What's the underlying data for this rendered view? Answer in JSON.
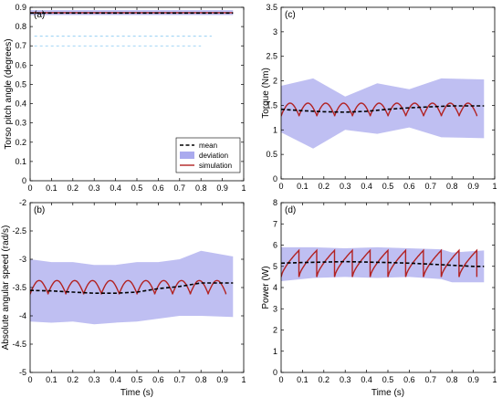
{
  "chart_data": [
    {
      "type": "line",
      "panel_label": "(a)",
      "title": "",
      "xlabel": "",
      "ylabel": "Torso pitch angle (degrees)",
      "xlim": [
        0,
        1
      ],
      "ylim": [
        0,
        0.9
      ],
      "xticks": [
        "0",
        "0.1",
        "0.2",
        "0.3",
        "0.4",
        "0.5",
        "0.6",
        "0.7",
        "0.8",
        "0.9",
        "1"
      ],
      "yticks": [
        "0",
        "0.1",
        "0.2",
        "0.3",
        "0.4",
        "0.5",
        "0.6",
        "0.7",
        "0.8",
        "0.9"
      ],
      "grid": false,
      "legend": {
        "placement": "lower-right",
        "entries": [
          {
            "label": "mean",
            "style": "dashed",
            "color": "#000000"
          },
          {
            "label": "deviation",
            "style": "band",
            "color": "#aaaaee"
          },
          {
            "label": "simulation",
            "style": "solid",
            "color": "#b22222"
          }
        ]
      },
      "mean": {
        "x": [
          0,
          0.95
        ],
        "y": [
          0.87,
          0.87
        ]
      },
      "deviation": {
        "x": [
          0,
          0.95
        ],
        "lower": [
          0.86,
          0.86
        ],
        "upper": [
          0.885,
          0.885
        ]
      },
      "simulation": {
        "x": [
          0,
          0.95
        ],
        "y": [
          0.872,
          0.872
        ]
      },
      "ghost_dashes": [
        0.75,
        0.7
      ]
    },
    {
      "type": "line",
      "panel_label": "(b)",
      "title": "",
      "xlabel": "Time (s)",
      "ylabel": "Absolute angular speed (rad/s)",
      "xlim": [
        0,
        1
      ],
      "ylim": [
        -5,
        -2
      ],
      "xticks": [
        "0",
        "0.1",
        "0.2",
        "0.3",
        "0.4",
        "0.5",
        "0.6",
        "0.7",
        "0.8",
        "0.9",
        "1"
      ],
      "yticks": [
        "-5",
        "-4.5",
        "-4",
        "-3.5",
        "-3",
        "-2.5",
        "-2"
      ],
      "grid": false,
      "mean": {
        "x": [
          0,
          0.1,
          0.2,
          0.3,
          0.4,
          0.5,
          0.6,
          0.7,
          0.8,
          0.9,
          0.95
        ],
        "y": [
          -3.55,
          -3.56,
          -3.58,
          -3.6,
          -3.6,
          -3.58,
          -3.52,
          -3.48,
          -3.42,
          -3.42,
          -3.42
        ]
      },
      "deviation": {
        "x": [
          0,
          0.1,
          0.2,
          0.3,
          0.4,
          0.5,
          0.6,
          0.7,
          0.8,
          0.95
        ],
        "upper": [
          -3.0,
          -3.05,
          -3.05,
          -3.1,
          -3.1,
          -3.05,
          -3.05,
          -3.0,
          -2.85,
          -2.95
        ],
        "lower": [
          -4.1,
          -4.12,
          -4.1,
          -4.15,
          -4.12,
          -4.1,
          -4.05,
          -4.0,
          -4.0,
          -4.02
        ]
      },
      "simulation": {
        "period": 0.0833,
        "start": 0,
        "end": 0.95,
        "low": -3.62,
        "high": -3.37,
        "shape": "arch"
      }
    },
    {
      "type": "line",
      "panel_label": "(c)",
      "title": "",
      "xlabel": "",
      "ylabel": "Torque (Nm)",
      "xlim": [
        0,
        1
      ],
      "ylim": [
        0,
        3.5
      ],
      "xticks": [
        "0",
        "0.1",
        "0.2",
        "0.3",
        "0.4",
        "0.5",
        "0.6",
        "0.7",
        "0.8",
        "0.9",
        "1"
      ],
      "yticks": [
        "0",
        "0.5",
        "1",
        "1.5",
        "2",
        "2.5",
        "3",
        "3.5"
      ],
      "grid": false,
      "mean": {
        "x": [
          0,
          0.1,
          0.2,
          0.3,
          0.4,
          0.5,
          0.6,
          0.7,
          0.8,
          0.9,
          0.95
        ],
        "y": [
          1.42,
          1.39,
          1.37,
          1.36,
          1.38,
          1.42,
          1.45,
          1.47,
          1.49,
          1.49,
          1.49
        ]
      },
      "deviation": {
        "x": [
          0,
          0.15,
          0.3,
          0.45,
          0.6,
          0.75,
          0.95
        ],
        "upper": [
          1.9,
          2.05,
          1.68,
          1.95,
          1.83,
          2.05,
          2.03
        ],
        "lower": [
          0.95,
          0.62,
          1.0,
          0.92,
          1.05,
          0.85,
          0.83
        ]
      },
      "simulation": {
        "period": 0.0833,
        "start": 0,
        "end": 0.95,
        "low": 1.28,
        "high": 1.55,
        "shape": "arch"
      }
    },
    {
      "type": "line",
      "panel_label": "(d)",
      "title": "",
      "xlabel": "Time (s)",
      "ylabel": "Power (W)",
      "xlim": [
        0,
        1
      ],
      "ylim": [
        0,
        8
      ],
      "xticks": [
        "0",
        "0.1",
        "0.2",
        "0.3",
        "0.4",
        "0.5",
        "0.6",
        "0.7",
        "0.8",
        "0.9",
        "1"
      ],
      "yticks": [
        "0",
        "1",
        "2",
        "3",
        "4",
        "5",
        "6",
        "7",
        "8"
      ],
      "grid": false,
      "mean": {
        "x": [
          0,
          0.1,
          0.2,
          0.3,
          0.4,
          0.5,
          0.6,
          0.7,
          0.8,
          0.9,
          0.95
        ],
        "y": [
          5.15,
          5.18,
          5.2,
          5.22,
          5.2,
          5.18,
          5.15,
          5.1,
          5.05,
          5.0,
          5.0
        ]
      },
      "deviation": {
        "x": [
          0,
          0.15,
          0.3,
          0.45,
          0.6,
          0.75,
          0.8,
          0.95
        ],
        "upper": [
          5.9,
          5.9,
          5.85,
          5.9,
          5.85,
          5.8,
          5.65,
          5.75
        ],
        "lower": [
          4.3,
          4.45,
          4.5,
          4.45,
          4.5,
          4.4,
          4.25,
          4.25
        ]
      },
      "simulation": {
        "period": 0.0833,
        "start": 0,
        "end": 0.95,
        "low": 4.5,
        "high": 5.75,
        "shape": "sawtooth"
      }
    }
  ]
}
